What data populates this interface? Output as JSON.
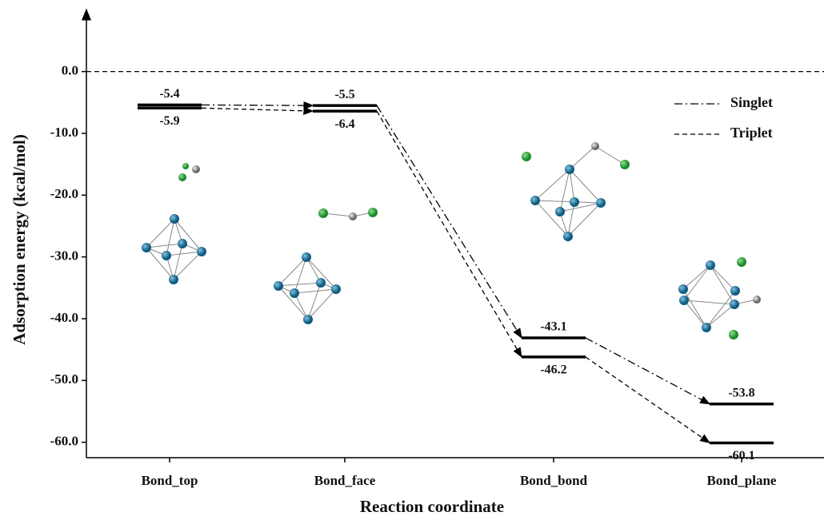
{
  "chart_data": {
    "type": "energy_levels",
    "xlabel": "Reaction coordinate",
    "ylabel": "Adsorption energy  (kcal/mol)",
    "categories": [
      "Bond_top",
      "Bond_face",
      "Bond_bond",
      "Bond_plane"
    ],
    "series": [
      {
        "name": "Singlet",
        "color": "#000000",
        "dash": "dashdot",
        "values": [
          -5.4,
          -5.5,
          -43.1,
          -53.8
        ]
      },
      {
        "name": "Triplet",
        "color": "#000000",
        "dash": "dashed",
        "values": [
          -5.9,
          -6.4,
          -46.2,
          -60.1
        ]
      }
    ],
    "ylim": [
      -62.5,
      9
    ],
    "yticks": [
      {
        "value": 0,
        "label": "0.0"
      },
      {
        "value": -10,
        "label": "-10.0"
      },
      {
        "value": -20,
        "label": "-20.0"
      },
      {
        "value": -30,
        "label": "-30.0"
      },
      {
        "value": -40,
        "label": "-40.0"
      },
      {
        "value": -50,
        "label": "-50.0"
      },
      {
        "value": -60,
        "label": "-60.0"
      }
    ],
    "reference_line": 0,
    "legend": "upper right"
  }
}
